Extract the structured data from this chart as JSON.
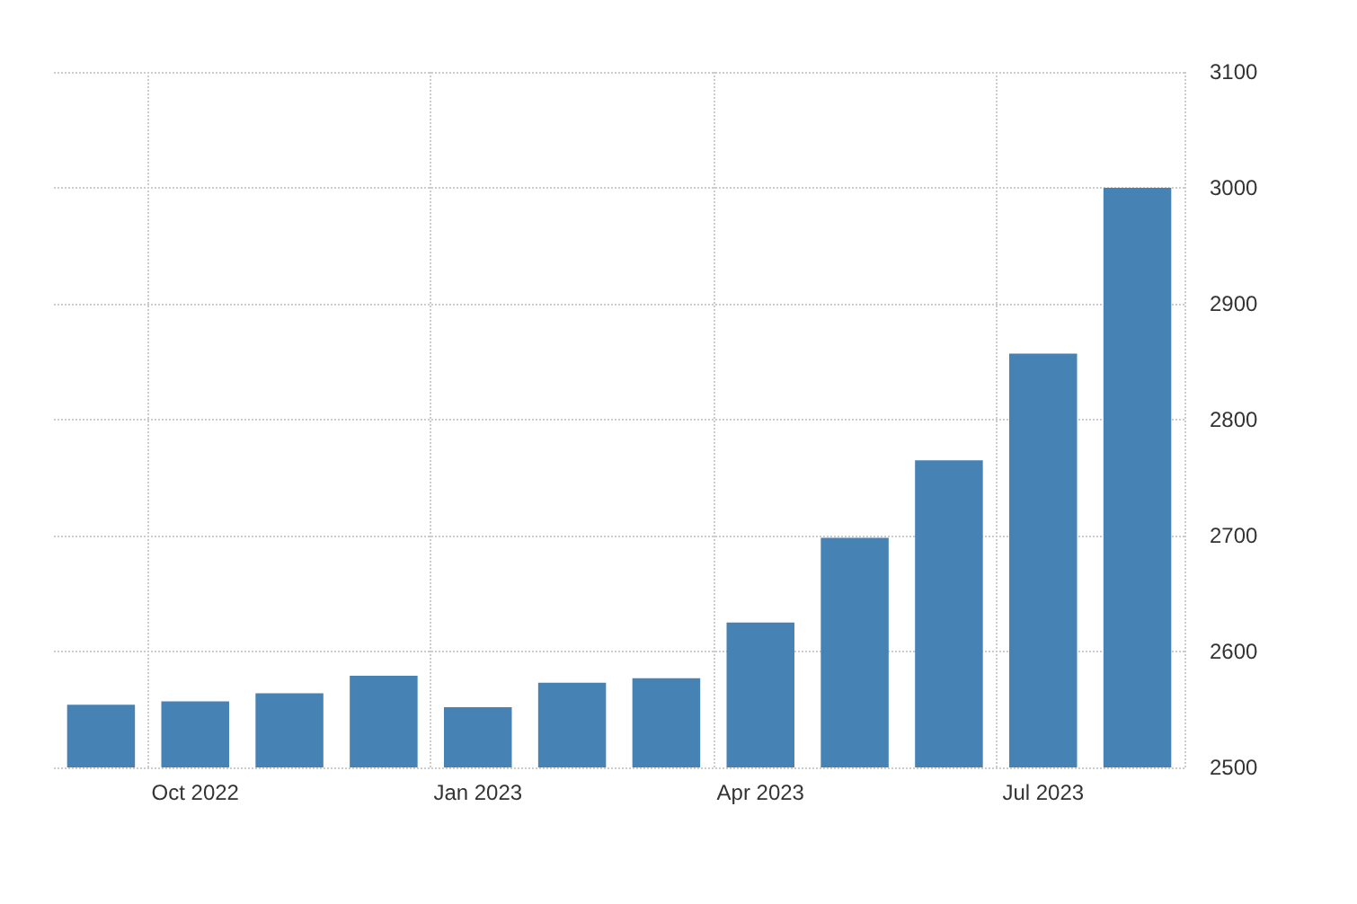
{
  "chart_data": {
    "type": "bar",
    "categories": [
      null,
      "Oct 2022",
      null,
      null,
      "Jan 2023",
      null,
      null,
      "Apr 2023",
      null,
      null,
      "Jul 2023",
      null
    ],
    "values": [
      2554,
      2557,
      2564,
      2579,
      2552,
      2573,
      2577,
      2625,
      2698,
      2765,
      2857,
      3000
    ],
    "color": "#4682b4",
    "ylim": [
      2500,
      3100
    ],
    "yticks": [
      2500,
      2600,
      2700,
      2800,
      2900,
      3000,
      3100
    ],
    "grid": true
  }
}
